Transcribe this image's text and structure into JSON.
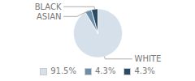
{
  "chart_data": {
    "type": "pie",
    "categories": [
      "WHITE",
      "ASIAN",
      "BLACK"
    ],
    "values": [
      91.5,
      4.3,
      4.3
    ],
    "value_labels": [
      "91.5%",
      "4.3%",
      "4.3%"
    ],
    "colors": [
      "#d6e0ea",
      "#6b8fa8",
      "#2b4a63"
    ],
    "legend": "bottom"
  }
}
